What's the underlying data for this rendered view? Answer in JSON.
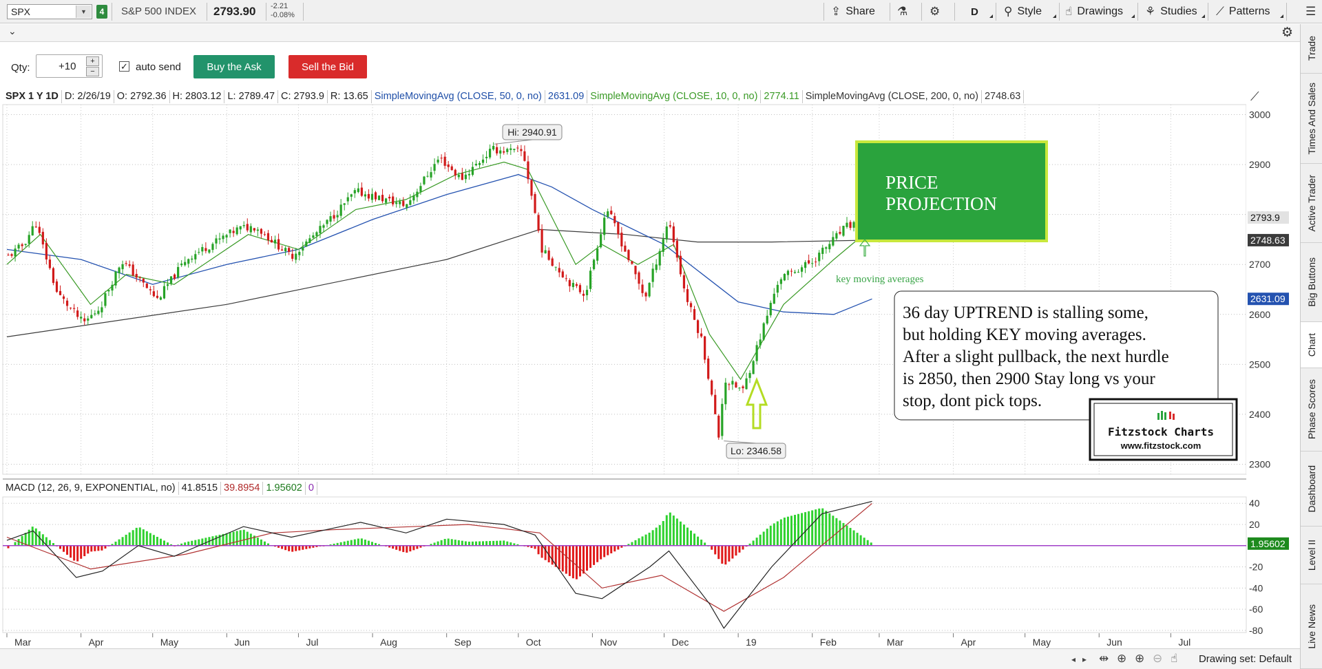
{
  "toolbar": {
    "symbol": "SPX",
    "link_badge": "4",
    "description": "S&P 500 INDEX",
    "last": "2793.90",
    "change": "-2.21",
    "change_pct": "-0.08%",
    "share_label": "Share",
    "period_label": "D",
    "style_label": "Style",
    "drawings_label": "Drawings",
    "studies_label": "Studies",
    "patterns_label": "Patterns"
  },
  "order": {
    "qty_label": "Qty:",
    "qty_value": "+10",
    "autosend_label": "auto send",
    "autosend_checked": true,
    "buy_label": "Buy the Ask",
    "sell_label": "Sell the Bid",
    "buy_color": "#22936b",
    "sell_color": "#d92b2b"
  },
  "legend": {
    "symbol": "SPX 1 Y 1D",
    "date": "D: 2/26/19",
    "open": "O: 2792.36",
    "high": "H: 2803.12",
    "low": "L: 2789.47",
    "close": "C: 2793.9",
    "range": "R: 13.65",
    "sma50_label": "SimpleMovingAvg (CLOSE, 50, 0, no)",
    "sma50_value": "2631.09",
    "sma10_label": "SimpleMovingAvg (CLOSE, 10, 0, no)",
    "sma10_value": "2774.11",
    "sma200_label": "SimpleMovingAvg (CLOSE, 200, 0, no)",
    "sma200_value": "2748.63"
  },
  "macd_legend": {
    "label": "MACD (12, 26, 9, EXPONENTIAL, no)",
    "value": "41.8515",
    "avg": "39.8954",
    "diff": "1.95602",
    "zero": "0"
  },
  "price_tags": {
    "last": "2793.9",
    "sma200": "2748.63",
    "sma50": "2631.09",
    "macd_diff": "1.95602"
  },
  "annotations": {
    "high_label": "Hi: 2940.91",
    "low_label": "Lo: 2346.58",
    "projection_line1": "PRICE",
    "projection_line2": "PROJECTION",
    "key_ma": "key moving averages",
    "note_lines": [
      "36 day UPTREND is stalling some,",
      "but holding KEY moving averages.",
      "After a slight pullback, the next hurdle",
      "is 2850, then 2900  Stay long vs your",
      "stop, dont pick tops."
    ],
    "logo_title": "Fitzstock Charts",
    "logo_url": "www.fitzstock.com"
  },
  "side_tabs": [
    "Trade",
    "Times And Sales",
    "Active Trader",
    "Big Buttons",
    "Chart",
    "Phase Scores",
    "Dashboard",
    "Level II",
    "Live News"
  ],
  "bottom": {
    "drawing_set": "Drawing set: Default"
  },
  "chart_data": {
    "type": "candlestick",
    "title": "SPX 1 Y 1D",
    "x_ticks": [
      "Mar",
      "Apr",
      "May",
      "Jun",
      "Jul",
      "Aug",
      "Sep",
      "Oct",
      "Nov",
      "Dec",
      "19",
      "Feb",
      "Mar",
      "Apr",
      "May",
      "Jun",
      "Jul"
    ],
    "price_ticks": [
      3000,
      2900,
      2800,
      2700,
      2600,
      2500,
      2400,
      2300
    ],
    "price_range": [
      2280,
      3020
    ],
    "macd_ticks": [
      40,
      20,
      0,
      -20,
      -40,
      -60,
      -80
    ],
    "macd_range": [
      -82,
      46
    ],
    "close_path": [
      [
        "2018-03-01",
        2714
      ],
      [
        "2018-03-08",
        2740
      ],
      [
        "2018-03-13",
        2784
      ],
      [
        "2018-03-22",
        2643
      ],
      [
        "2018-04-02",
        2582
      ],
      [
        "2018-04-09",
        2614
      ],
      [
        "2018-04-18",
        2708
      ],
      [
        "2018-05-03",
        2630
      ],
      [
        "2018-05-15",
        2711
      ],
      [
        "2018-06-06",
        2772
      ],
      [
        "2018-06-13",
        2776
      ],
      [
        "2018-06-28",
        2716
      ],
      [
        "2018-07-11",
        2774
      ],
      [
        "2018-07-25",
        2846
      ],
      [
        "2018-08-15",
        2818
      ],
      [
        "2018-08-29",
        2914
      ],
      [
        "2018-09-07",
        2871
      ],
      [
        "2018-09-20",
        2930
      ],
      [
        "2018-10-03",
        2925
      ],
      [
        "2018-10-11",
        2728
      ],
      [
        "2018-10-24",
        2656
      ],
      [
        "2018-10-29",
        2641
      ],
      [
        "2018-11-07",
        2814
      ],
      [
        "2018-11-23",
        2633
      ],
      [
        "2018-12-03",
        2790
      ],
      [
        "2018-12-10",
        2637
      ],
      [
        "2018-12-17",
        2545
      ],
      [
        "2018-12-24",
        2351
      ],
      [
        "2018-12-26",
        2468
      ],
      [
        "2019-01-03",
        2448
      ],
      [
        "2019-01-18",
        2671
      ],
      [
        "2019-02-01",
        2706
      ],
      [
        "2019-02-15",
        2775
      ],
      [
        "2019-02-26",
        2794
      ]
    ],
    "sma50_path": [
      [
        "2018-03-01",
        2730
      ],
      [
        "2018-04-01",
        2710
      ],
      [
        "2018-05-01",
        2660
      ],
      [
        "2018-06-01",
        2700
      ],
      [
        "2018-07-01",
        2730
      ],
      [
        "2018-08-01",
        2790
      ],
      [
        "2018-09-01",
        2840
      ],
      [
        "2018-10-01",
        2880
      ],
      [
        "2018-10-15",
        2855
      ],
      [
        "2018-11-01",
        2810
      ],
      [
        "2018-12-01",
        2740
      ],
      [
        "2019-01-01",
        2625
      ],
      [
        "2019-01-20",
        2605
      ],
      [
        "2019-02-10",
        2600
      ],
      [
        "2019-02-26",
        2631
      ]
    ],
    "sma10_path": [
      [
        "2018-03-01",
        2700
      ],
      [
        "2018-03-15",
        2760
      ],
      [
        "2018-04-05",
        2620
      ],
      [
        "2018-04-20",
        2680
      ],
      [
        "2018-05-10",
        2660
      ],
      [
        "2018-06-10",
        2760
      ],
      [
        "2018-07-01",
        2730
      ],
      [
        "2018-07-25",
        2810
      ],
      [
        "2018-08-15",
        2830
      ],
      [
        "2018-09-05",
        2880
      ],
      [
        "2018-09-25",
        2905
      ],
      [
        "2018-10-05",
        2890
      ],
      [
        "2018-10-25",
        2700
      ],
      [
        "2018-11-05",
        2740
      ],
      [
        "2018-11-20",
        2700
      ],
      [
        "2018-12-05",
        2740
      ],
      [
        "2018-12-20",
        2560
      ],
      [
        "2019-01-02",
        2470
      ],
      [
        "2019-01-20",
        2620
      ],
      [
        "2019-02-10",
        2710
      ],
      [
        "2019-02-26",
        2774
      ]
    ],
    "sma200_path": [
      [
        "2018-03-01",
        2555
      ],
      [
        "2018-06-01",
        2620
      ],
      [
        "2018-09-01",
        2710
      ],
      [
        "2018-10-10",
        2770
      ],
      [
        "2018-11-15",
        2760
      ],
      [
        "2018-12-15",
        2745
      ],
      [
        "2019-01-15",
        2745
      ],
      [
        "2019-02-26",
        2748.63
      ]
    ],
    "last_date": "2019-02-26",
    "high_marker": [
      "2018-09-21",
      2940.91
    ],
    "low_marker": [
      "2018-12-26",
      2346.58
    ],
    "macd_path": [
      [
        "2018-03-01",
        5
      ],
      [
        "2018-03-12",
        14
      ],
      [
        "2018-03-30",
        -30
      ],
      [
        "2018-04-10",
        -24
      ],
      [
        "2018-04-25",
        0
      ],
      [
        "2018-05-10",
        -10
      ],
      [
        "2018-06-08",
        18
      ],
      [
        "2018-06-28",
        8
      ],
      [
        "2018-07-27",
        22
      ],
      [
        "2018-08-15",
        12
      ],
      [
        "2018-09-01",
        25
      ],
      [
        "2018-09-25",
        20
      ],
      [
        "2018-10-08",
        10
      ],
      [
        "2018-10-25",
        -45
      ],
      [
        "2018-11-05",
        -50
      ],
      [
        "2018-11-25",
        -20
      ],
      [
        "2018-12-03",
        -5
      ],
      [
        "2018-12-20",
        -55
      ],
      [
        "2018-12-26",
        -78
      ],
      [
        "2019-01-15",
        -20
      ],
      [
        "2019-02-05",
        30
      ],
      [
        "2019-02-26",
        41.85
      ]
    ],
    "signal_path": [
      [
        "2018-03-01",
        8
      ],
      [
        "2018-04-05",
        -22
      ],
      [
        "2018-05-15",
        -8
      ],
      [
        "2018-06-20",
        12
      ],
      [
        "2018-07-15",
        15
      ],
      [
        "2018-09-10",
        20
      ],
      [
        "2018-10-10",
        12
      ],
      [
        "2018-11-05",
        -40
      ],
      [
        "2018-11-30",
        -28
      ],
      [
        "2018-12-26",
        -62
      ],
      [
        "2019-01-20",
        -30
      ],
      [
        "2019-02-26",
        39.9
      ]
    ]
  }
}
